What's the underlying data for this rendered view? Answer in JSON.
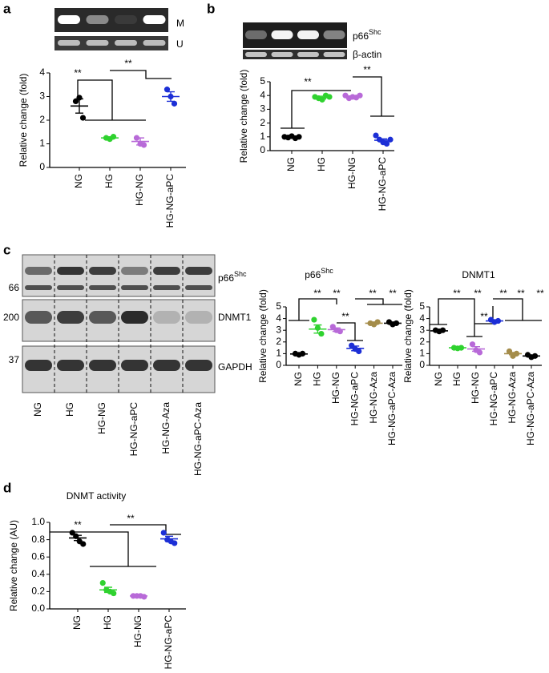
{
  "panel_labels": [
    "a",
    "b",
    "c",
    "d"
  ],
  "blots": {
    "a": {
      "rows": [
        "M",
        "U"
      ]
    },
    "b": {
      "target": "p66",
      "target_sup": "Shc",
      "control": "β-actin"
    },
    "c": {
      "target": "p66",
      "target_sup": "Shc",
      "dnmt1": "DNMT1",
      "gapdh": "GAPDH",
      "markers": [
        "66",
        "200",
        "37"
      ],
      "lanes": [
        "NG",
        "HG",
        "HG-NG",
        "HG-NG-aPC",
        "HG-NG-Aza",
        "HG-NG-aPC-Aza"
      ]
    }
  },
  "chart_data": [
    {
      "type": "dot",
      "y_label": "Relative change (fold)",
      "categories": [
        "NG",
        "HG",
        "HG-NG",
        "HG-NG-aPC"
      ],
      "colors": [
        "#000000",
        "#2fd22f",
        "#b86ad8",
        "#1c2fd6"
      ],
      "values": [
        [
          2.8,
          2.95,
          2.1
        ],
        [
          1.25,
          1.2,
          1.3
        ],
        [
          1.25,
          1.0,
          0.95
        ],
        [
          3.3,
          3.0,
          2.7
        ]
      ],
      "means": [
        2.6,
        1.25,
        1.1,
        3.0
      ],
      "errors": [
        0.3,
        0.05,
        0.15,
        0.2
      ],
      "ylim": [
        0,
        4
      ],
      "yticks": [
        0,
        1,
        2,
        3,
        4
      ],
      "annotations": [
        "**",
        "**"
      ]
    },
    {
      "type": "dot",
      "y_label": "Relative change (fold)",
      "categories": [
        "NG",
        "HG",
        "HG-NG",
        "HG-NG-aPC"
      ],
      "colors": [
        "#000000",
        "#2fd22f",
        "#b86ad8",
        "#1c2fd6"
      ],
      "values": [
        [
          1.0,
          0.95,
          1.05,
          0.9,
          1.0
        ],
        [
          3.9,
          3.8,
          3.7,
          4.0,
          3.9
        ],
        [
          4.0,
          3.8,
          3.9,
          3.85,
          4.0
        ],
        [
          1.1,
          0.8,
          0.6,
          0.5,
          0.8
        ]
      ],
      "means": [
        1.0,
        3.85,
        3.9,
        0.75
      ],
      "errors": [
        0.05,
        0.1,
        0.07,
        0.1
      ],
      "ylim": [
        0,
        5
      ],
      "yticks": [
        0,
        1,
        2,
        3,
        4,
        5
      ],
      "annotations": [
        "**",
        "**"
      ],
      "annotation_colors": [
        "#22b24c",
        "#000000"
      ]
    },
    {
      "type": "dot",
      "title": "p66",
      "title_sup": "Shc",
      "y_label": "Relative change (fold)",
      "categories": [
        "NG",
        "HG",
        "HG-NG",
        "HG-NG-aPC",
        "HG-NG-Aza",
        "HG-NG-aPC-Aza"
      ],
      "colors": [
        "#000000",
        "#2fd22f",
        "#b86ad8",
        "#1c2fd6",
        "#a48c4a",
        "#000000"
      ],
      "values": [
        [
          1.0,
          0.9,
          1.0
        ],
        [
          3.9,
          3.2,
          2.7
        ],
        [
          3.3,
          3.0,
          2.9
        ],
        [
          1.7,
          1.4,
          1.2
        ],
        [
          3.6,
          3.5,
          3.7
        ],
        [
          3.7,
          3.5,
          3.6
        ]
      ],
      "means": [
        0.97,
        3.1,
        3.05,
        1.45,
        3.6,
        3.6
      ],
      "errors": [
        0.05,
        0.35,
        0.15,
        0.2,
        0.1,
        0.1
      ],
      "ylim": [
        0,
        5
      ],
      "yticks": [
        0,
        1,
        2,
        3,
        4,
        5
      ],
      "annotations": [
        "**",
        "**",
        "**",
        "**",
        "**"
      ]
    },
    {
      "type": "dot",
      "title": "DNMT1",
      "y_label": "Relative change (fold)",
      "categories": [
        "NG",
        "HG",
        "HG-NG",
        "HG-NG-aPC",
        "HG-NG-Aza",
        "HG-NG-aPC-Aza"
      ],
      "colors": [
        "#000000",
        "#2fd22f",
        "#b86ad8",
        "#1c2fd6",
        "#a48c4a",
        "#000000"
      ],
      "values": [
        [
          3.0,
          2.9,
          3.0
        ],
        [
          1.5,
          1.45,
          1.5
        ],
        [
          1.8,
          1.3,
          1.1
        ],
        [
          3.9,
          3.7,
          3.8
        ],
        [
          1.2,
          0.8,
          1.0
        ],
        [
          0.9,
          0.7,
          0.8
        ]
      ],
      "means": [
        2.95,
        1.5,
        1.4,
        3.8,
        1.0,
        0.8
      ],
      "errors": [
        0.05,
        0.03,
        0.2,
        0.1,
        0.1,
        0.05
      ],
      "ylim": [
        0,
        5
      ],
      "yticks": [
        0,
        1,
        2,
        3,
        4,
        5
      ],
      "annotations": [
        "**",
        "**",
        "**",
        "**",
        "**",
        "**"
      ]
    },
    {
      "type": "dot",
      "title": "DNMT activity",
      "y_label": "Relative change (AU)",
      "categories": [
        "NG",
        "HG",
        "HG-NG",
        "HG-NG-aPC"
      ],
      "colors": [
        "#000000",
        "#2fd22f",
        "#b86ad8",
        "#1c2fd6"
      ],
      "values": [
        [
          0.88,
          0.84,
          0.78,
          0.75
        ],
        [
          0.3,
          0.22,
          0.2,
          0.18
        ],
        [
          0.15,
          0.15,
          0.15,
          0.14
        ],
        [
          0.88,
          0.8,
          0.78,
          0.76
        ]
      ],
      "means": [
        0.82,
        0.22,
        0.15,
        0.81
      ],
      "errors": [
        0.03,
        0.03,
        0.005,
        0.03
      ],
      "ylim": [
        0,
        1
      ],
      "yticks": [
        {
          "value": 0,
          "label": "0.0"
        },
        0.2,
        0.4,
        0.6,
        0.8,
        {
          "value": 1,
          "label": "1.0"
        }
      ],
      "annotations": [
        "**",
        "**"
      ]
    }
  ]
}
